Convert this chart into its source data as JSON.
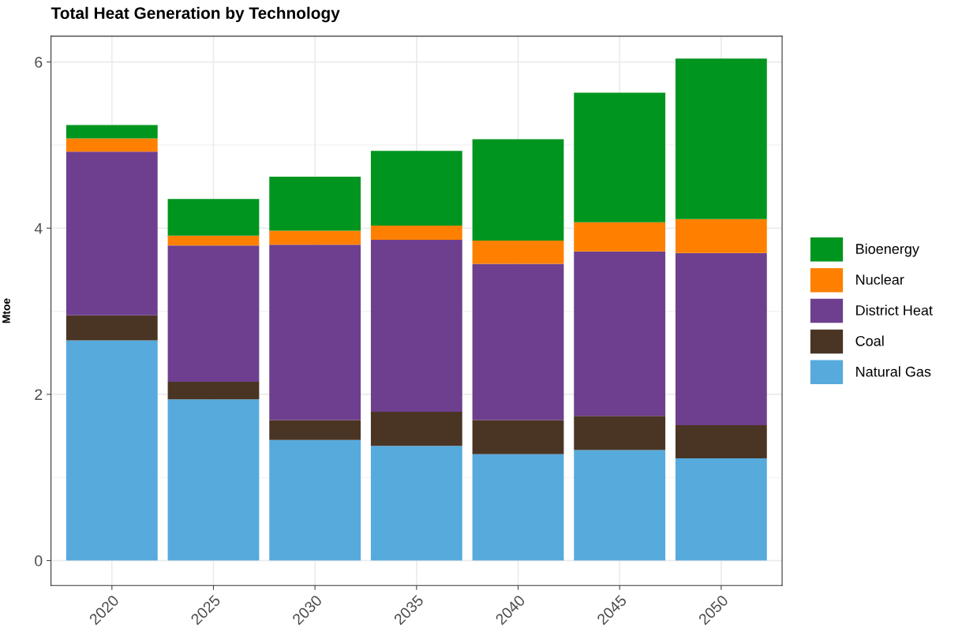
{
  "chart_data": {
    "type": "bar",
    "title": "Total Heat Generation by Technology",
    "ylabel": "Mtoe",
    "categories": [
      "2020",
      "2025",
      "2030",
      "2035",
      "2040",
      "2045",
      "2050"
    ],
    "stacked": true,
    "ylim": [
      -0.3,
      6.31
    ],
    "yticks": [
      0,
      2,
      4,
      6
    ],
    "grid": true,
    "legend": "right",
    "series": [
      {
        "name": "Natural Gas",
        "color": "#56aadc",
        "values": [
          2.65,
          1.94,
          1.45,
          1.38,
          1.28,
          1.33,
          1.23
        ]
      },
      {
        "name": "Coal",
        "color": "#4a3524",
        "values": [
          0.3,
          0.21,
          0.24,
          0.41,
          0.41,
          0.41,
          0.4
        ]
      },
      {
        "name": "District Heat",
        "color": "#6d3f8e",
        "values": [
          1.97,
          1.64,
          2.11,
          2.07,
          1.88,
          1.98,
          2.07
        ]
      },
      {
        "name": "Nuclear",
        "color": "#ff8000",
        "values": [
          0.16,
          0.12,
          0.17,
          0.17,
          0.28,
          0.35,
          0.41
        ]
      },
      {
        "name": "Bioenergy",
        "color": "#00951f",
        "values": [
          0.16,
          0.44,
          0.65,
          0.9,
          1.22,
          1.56,
          1.93
        ]
      }
    ]
  }
}
